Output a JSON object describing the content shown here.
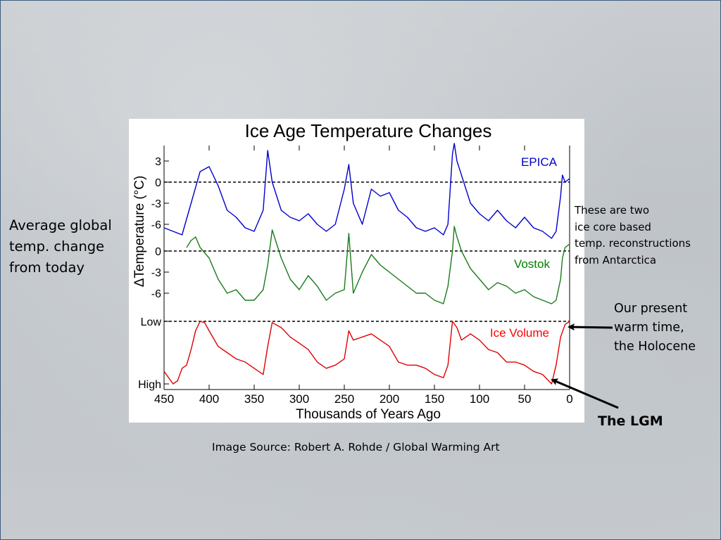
{
  "slide": {
    "left_note": [
      "Average global",
      "temp. change",
      "from today"
    ],
    "right_note": [
      "These are two",
      "ice core based",
      "temp. reconstructions",
      "from Antarctica"
    ],
    "holocene_note": [
      "Our present",
      "warm time,",
      "the Holocene"
    ],
    "lgm_label": "The LGM",
    "source": "Image Source: Robert A. Rohde / Global Warming Art"
  },
  "chart_data": {
    "type": "line",
    "title": "Ice Age Temperature Changes",
    "xlabel": "Thousands of Years Ago",
    "ylabel": "ΔTemperature (°C)",
    "x_reversed": true,
    "xlim": [
      450,
      0
    ],
    "x_ticks": [
      450,
      400,
      350,
      300,
      250,
      200,
      150,
      100,
      50,
      0
    ],
    "grid": false,
    "panels": [
      {
        "name": "EPICA",
        "label_color": "#0000cc",
        "color": "#0000cc",
        "ylim": [
          -8,
          5
        ],
        "y_ticks": [
          3,
          0,
          -3,
          -6
        ],
        "zero_line": 0,
        "x": [
          450,
          440,
          430,
          420,
          410,
          400,
          390,
          380,
          370,
          360,
          350,
          340,
          335,
          330,
          320,
          310,
          300,
          290,
          280,
          270,
          260,
          250,
          245,
          240,
          230,
          220,
          210,
          200,
          190,
          180,
          170,
          160,
          150,
          140,
          135,
          130,
          128,
          125,
          120,
          110,
          100,
          90,
          80,
          70,
          60,
          50,
          40,
          30,
          20,
          15,
          10,
          8,
          5,
          0
        ],
        "y": [
          -6.5,
          -7,
          -7.5,
          -3,
          1.5,
          2.2,
          -0.5,
          -4,
          -5,
          -6.5,
          -7,
          -4,
          4.5,
          0,
          -4,
          -5,
          -5.5,
          -4.5,
          -6,
          -7,
          -6,
          -1,
          2.5,
          -3,
          -6,
          -1,
          -2,
          -1.5,
          -4,
          -5,
          -6.5,
          -7,
          -6.5,
          -7.5,
          -6,
          4,
          5.5,
          3,
          1,
          -3,
          -4.5,
          -5.5,
          -4,
          -5.5,
          -6.5,
          -5,
          -6.5,
          -7,
          -8,
          -7,
          -2,
          1,
          0,
          0.5
        ]
      },
      {
        "name": "Vostok",
        "label_color": "#008000",
        "color": "#1a7a1a",
        "ylim": [
          -8,
          3
        ],
        "y_ticks": [
          0,
          -3,
          -6
        ],
        "zero_line": 0,
        "x": [
          425,
          420,
          415,
          410,
          400,
          390,
          380,
          370,
          360,
          350,
          340,
          335,
          330,
          320,
          310,
          300,
          290,
          280,
          270,
          260,
          250,
          245,
          240,
          230,
          220,
          210,
          200,
          190,
          180,
          170,
          160,
          150,
          140,
          135,
          130,
          128,
          125,
          120,
          110,
          100,
          90,
          80,
          70,
          60,
          50,
          40,
          30,
          20,
          15,
          10,
          8,
          5,
          0
        ],
        "y": [
          0.5,
          1.5,
          2,
          0.5,
          -1,
          -4,
          -6,
          -5.5,
          -7,
          -7,
          -5.5,
          -2,
          3,
          -1,
          -4,
          -5.5,
          -3.5,
          -5,
          -7,
          -6,
          -5.5,
          2.5,
          -6,
          -3,
          -0.5,
          -2,
          -3,
          -4,
          -5,
          -6,
          -6,
          -7,
          -7.5,
          -5,
          0,
          3.5,
          2,
          0,
          -2.5,
          -4,
          -5.5,
          -4.5,
          -5,
          -6,
          -5.5,
          -6.5,
          -7,
          -7.5,
          -7,
          -4,
          -1,
          0.5,
          1
        ]
      },
      {
        "name": "Ice Volume",
        "label_color": "#ff0000",
        "color": "#e00000",
        "ylim": [
          "High",
          "Low"
        ],
        "y_ticks": [
          "Low",
          "High"
        ],
        "x": [
          450,
          445,
          440,
          435,
          430,
          425,
          420,
          415,
          410,
          405,
          400,
          390,
          380,
          370,
          360,
          350,
          340,
          335,
          330,
          320,
          310,
          300,
          290,
          280,
          270,
          260,
          250,
          245,
          240,
          230,
          220,
          210,
          200,
          190,
          180,
          170,
          160,
          150,
          140,
          135,
          130,
          125,
          120,
          110,
          100,
          90,
          80,
          70,
          60,
          50,
          40,
          30,
          20,
          15,
          10,
          5,
          0
        ],
        "y": [
          0.2,
          0.1,
          0.0,
          0.05,
          0.25,
          0.3,
          0.55,
          0.85,
          1.0,
          0.98,
          0.85,
          0.6,
          0.5,
          0.4,
          0.35,
          0.25,
          0.15,
          0.6,
          0.98,
          0.9,
          0.75,
          0.65,
          0.55,
          0.35,
          0.25,
          0.3,
          0.4,
          0.85,
          0.7,
          0.75,
          0.8,
          0.7,
          0.6,
          0.35,
          0.3,
          0.3,
          0.25,
          0.15,
          0.1,
          0.3,
          1.0,
          0.9,
          0.7,
          0.8,
          0.7,
          0.55,
          0.5,
          0.35,
          0.35,
          0.3,
          0.2,
          0.15,
          0.0,
          0.3,
          0.75,
          0.95,
          1.0
        ]
      }
    ]
  }
}
